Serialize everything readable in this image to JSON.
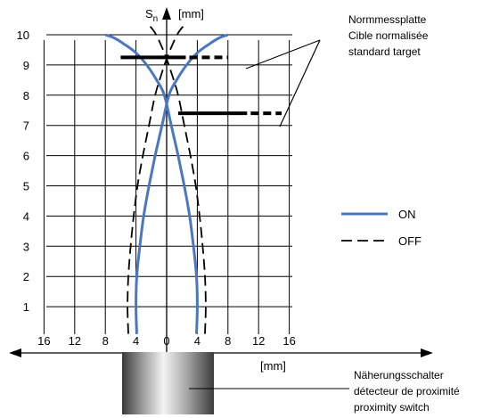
{
  "chart_data": {
    "type": "line",
    "title": "",
    "y_axis": {
      "symbol": "S",
      "subscript": "n",
      "unit": "[mm]",
      "range": [
        0,
        10.6
      ],
      "ticks": [
        1,
        2,
        3,
        4,
        5,
        6,
        7,
        8,
        9,
        10
      ]
    },
    "x_axis": {
      "unit": "[mm]",
      "range": [
        -18,
        18
      ],
      "ticks": [
        {
          "value": -16,
          "label": "16"
        },
        {
          "value": -12,
          "label": "12"
        },
        {
          "value": -8,
          "label": "8"
        },
        {
          "value": -4,
          "label": "4"
        },
        {
          "value": 0,
          "label": "0"
        },
        {
          "value": 4,
          "label": "4"
        },
        {
          "value": 8,
          "label": "8"
        },
        {
          "value": 12,
          "label": "12"
        },
        {
          "value": 16,
          "label": "16"
        }
      ]
    },
    "grid": true,
    "legend": {
      "position": "right",
      "entries": [
        {
          "name": "ON",
          "style": "solid",
          "color": "#4a78c0"
        },
        {
          "name": "OFF",
          "style": "dashed",
          "color": "#000000"
        }
      ]
    },
    "series": [
      {
        "name": "ON",
        "style": "solid",
        "color": "#4a78c0",
        "x": [
          -3.9,
          -4.0,
          -3.9,
          -3.5,
          -3.0,
          -2.3,
          -1.5,
          -0.6,
          0.3,
          1.3,
          2.6,
          4.0,
          5.6,
          6.9,
          8.0
        ],
        "y": [
          0.1,
          1,
          2,
          3,
          4,
          5,
          6,
          7,
          8,
          8.5,
          9,
          9.4,
          9.7,
          9.9,
          10
        ]
      },
      {
        "name": "ON",
        "style": "solid",
        "color": "#4a78c0",
        "x": [
          3.9,
          4.0,
          3.9,
          3.5,
          3.0,
          2.3,
          1.5,
          0.6,
          -0.3,
          -1.3,
          -2.6,
          -4.0,
          -5.6,
          -6.9,
          -8.0
        ],
        "y": [
          0.1,
          1,
          2,
          3,
          4,
          5,
          6,
          7,
          8,
          8.5,
          9,
          9.4,
          9.7,
          9.9,
          10
        ]
      },
      {
        "name": "OFF",
        "style": "dashed",
        "color": "#000000",
        "x": [
          -5.0,
          -5.1,
          -5.0,
          -4.7,
          -4.3,
          -3.8,
          -3.1,
          -2.3,
          -1.5,
          -0.8,
          0.0,
          0.8,
          1.6,
          2.6
        ],
        "y": [
          0.1,
          1,
          2,
          3,
          4,
          5,
          6,
          7,
          8,
          8.6,
          9.2,
          9.7,
          10.1,
          10.4
        ]
      },
      {
        "name": "OFF",
        "style": "dashed",
        "color": "#000000",
        "x": [
          5.0,
          5.1,
          5.0,
          4.7,
          4.3,
          3.8,
          3.1,
          2.3,
          1.5,
          0.8,
          0.0,
          -0.8,
          -1.6,
          -2.6
        ],
        "y": [
          0.1,
          1,
          2,
          3,
          4,
          5,
          6,
          7,
          8,
          8.6,
          9.2,
          9.7,
          10.1,
          10.4
        ]
      }
    ],
    "targets": [
      {
        "y": 9.25,
        "x_start": -6.0,
        "x_solid_end": 2.5,
        "x_end": 8.0
      },
      {
        "y": 7.4,
        "x_start": 1.5,
        "x_solid_end": 10.5,
        "x_end": 15.0
      }
    ],
    "annotations": {
      "target_label": [
        "Normmessplatte",
        "Cible normalisée",
        "standard target"
      ],
      "switch_label": [
        "Näherungsschalter",
        "détecteur de proximité",
        "proximity switch"
      ]
    }
  }
}
